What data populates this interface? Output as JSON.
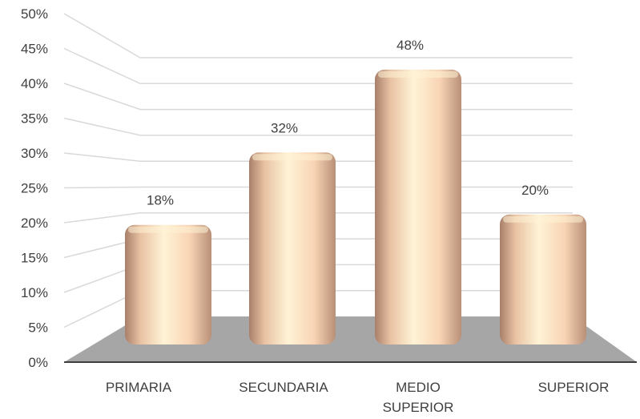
{
  "chart_data": {
    "type": "bar",
    "categories": [
      "PRIMARIA",
      "SECUNDARIA",
      "MEDIO SUPERIOR",
      "SUPERIOR"
    ],
    "values": [
      18,
      32,
      48,
      20
    ],
    "data_labels": [
      "18%",
      "32%",
      "48%",
      "20%"
    ],
    "y_ticks": [
      "0%",
      "5%",
      "10%",
      "15%",
      "20%",
      "25%",
      "30%",
      "35%",
      "40%",
      "45%",
      "50%"
    ],
    "ylim": [
      0,
      50
    ],
    "grid": true,
    "style": "3d-cylinder-bars",
    "colors": {
      "bar_light": "#fff3d6",
      "bar_mid": "#f8d4b4",
      "bar_dark": "#a8806a",
      "floor": "#a6a6a6",
      "grid": "#d9d9d9",
      "text": "#404040"
    }
  }
}
